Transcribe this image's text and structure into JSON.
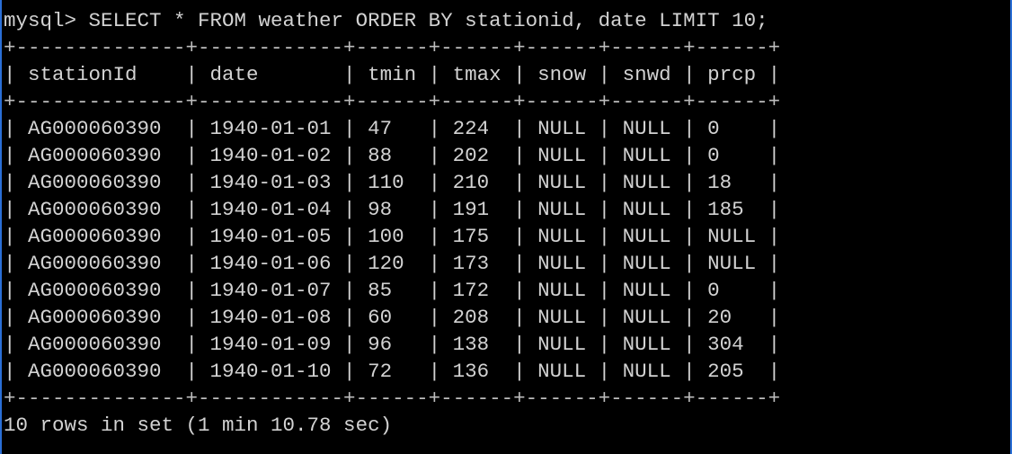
{
  "terminal": {
    "prompt": "mysql> ",
    "command": "SELECT * FROM weather ORDER BY stationid, date LIMIT 10;",
    "columns": [
      "stationId",
      "date",
      "tmin",
      "tmax",
      "snow",
      "snwd",
      "prcp"
    ],
    "rows": [
      [
        "AG000060390",
        "1940-01-01",
        "47",
        "224",
        "NULL",
        "NULL",
        "0"
      ],
      [
        "AG000060390",
        "1940-01-02",
        "88",
        "202",
        "NULL",
        "NULL",
        "0"
      ],
      [
        "AG000060390",
        "1940-01-03",
        "110",
        "210",
        "NULL",
        "NULL",
        "18"
      ],
      [
        "AG000060390",
        "1940-01-04",
        "98",
        "191",
        "NULL",
        "NULL",
        "185"
      ],
      [
        "AG000060390",
        "1940-01-05",
        "100",
        "175",
        "NULL",
        "NULL",
        "NULL"
      ],
      [
        "AG000060390",
        "1940-01-06",
        "120",
        "173",
        "NULL",
        "NULL",
        "NULL"
      ],
      [
        "AG000060390",
        "1940-01-07",
        "85",
        "172",
        "NULL",
        "NULL",
        "0"
      ],
      [
        "AG000060390",
        "1940-01-08",
        "60",
        "208",
        "NULL",
        "NULL",
        "20"
      ],
      [
        "AG000060390",
        "1940-01-09",
        "96",
        "138",
        "NULL",
        "NULL",
        "304"
      ],
      [
        "AG000060390",
        "1940-01-10",
        "72",
        "136",
        "NULL",
        "NULL",
        "205"
      ]
    ],
    "status": "10 rows in set (1 min 10.78 sec)"
  },
  "colors": {
    "background": "#000000",
    "text": "#d2d2d2",
    "window_border": "#2a6fd6"
  }
}
